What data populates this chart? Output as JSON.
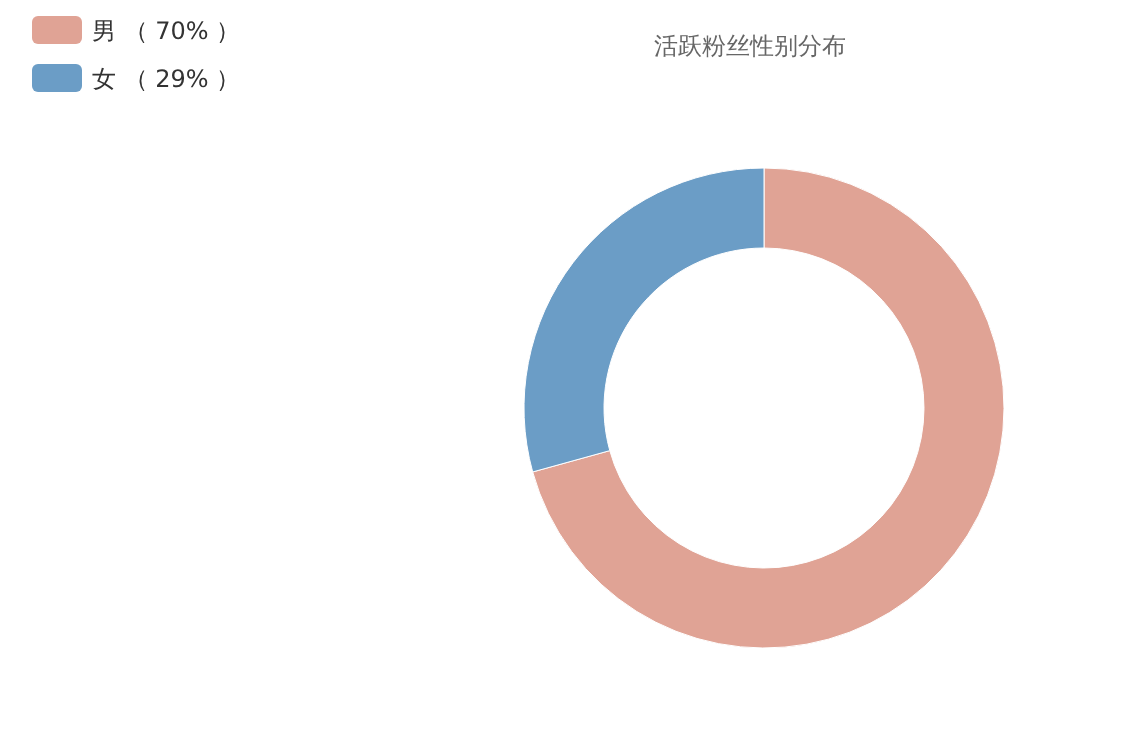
{
  "chart_data": {
    "type": "donut",
    "title": "活跃粉丝性别分布",
    "categories": [
      "男",
      "女"
    ],
    "values": [
      70,
      29
    ],
    "value_labels": [
      "（ 70% ）",
      "（ 29% ）"
    ],
    "colors": [
      "#e0a395",
      "#6b9dc6"
    ],
    "legend": "top left"
  }
}
